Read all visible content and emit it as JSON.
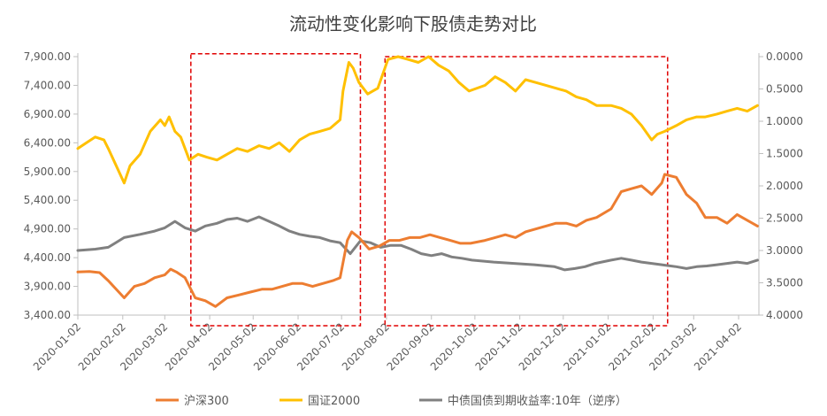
{
  "chart_data": {
    "type": "line",
    "title": "流动性变化影响下股债走势对比",
    "x_ticks": [
      "2020-01-02",
      "2020-02-02",
      "2020-03-02",
      "2020-04-02",
      "2020-05-02",
      "2020-06-02",
      "2020-07-02",
      "2020-08-02",
      "2020-09-02",
      "2020-10-02",
      "2020-11-02",
      "2020-12-02",
      "2021-01-02",
      "2021-02-02",
      "2021-03-02",
      "2021-04-02"
    ],
    "y_left": {
      "ticks": [
        "3,400.00",
        "3,900.00",
        "4,400.00",
        "4,900.00",
        "5,400.00",
        "5,900.00",
        "6,400.00",
        "6,900.00",
        "7,400.00",
        "7,900.00"
      ],
      "range": [
        3400,
        7900
      ]
    },
    "y_right": {
      "ticks": [
        "0.0000",
        "0.5000",
        "1.0000",
        "1.5000",
        "2.0000",
        "2.5000",
        "3.0000",
        "3.5000",
        "4.0000"
      ],
      "range": [
        0,
        4
      ],
      "inverted": true
    },
    "series": [
      {
        "name": "沪深300",
        "axis": "left",
        "color": "#ED7D31",
        "points": [
          [
            "2020-01-02",
            4150
          ],
          [
            "2020-01-10",
            4160
          ],
          [
            "2020-01-17",
            4140
          ],
          [
            "2020-01-23",
            4000
          ],
          [
            "2020-02-03",
            3700
          ],
          [
            "2020-02-10",
            3900
          ],
          [
            "2020-02-17",
            3950
          ],
          [
            "2020-02-24",
            4050
          ],
          [
            "2020-03-02",
            4100
          ],
          [
            "2020-03-06",
            4200
          ],
          [
            "2020-03-10",
            4150
          ],
          [
            "2020-03-16",
            4050
          ],
          [
            "2020-03-23",
            3700
          ],
          [
            "2020-03-30",
            3650
          ],
          [
            "2020-04-06",
            3550
          ],
          [
            "2020-04-14",
            3700
          ],
          [
            "2020-04-22",
            3750
          ],
          [
            "2020-04-30",
            3800
          ],
          [
            "2020-05-08",
            3850
          ],
          [
            "2020-05-15",
            3850
          ],
          [
            "2020-05-22",
            3900
          ],
          [
            "2020-05-29",
            3950
          ],
          [
            "2020-06-05",
            3950
          ],
          [
            "2020-06-12",
            3900
          ],
          [
            "2020-06-19",
            3950
          ],
          [
            "2020-06-26",
            4000
          ],
          [
            "2020-07-01",
            4050
          ],
          [
            "2020-07-06",
            4700
          ],
          [
            "2020-07-09",
            4850
          ],
          [
            "2020-07-14",
            4750
          ],
          [
            "2020-07-21",
            4550
          ],
          [
            "2020-07-28",
            4600
          ],
          [
            "2020-08-04",
            4700
          ],
          [
            "2020-08-11",
            4700
          ],
          [
            "2020-08-18",
            4750
          ],
          [
            "2020-08-25",
            4750
          ],
          [
            "2020-09-01",
            4800
          ],
          [
            "2020-09-08",
            4750
          ],
          [
            "2020-09-15",
            4700
          ],
          [
            "2020-09-22",
            4650
          ],
          [
            "2020-09-29",
            4650
          ],
          [
            "2020-10-09",
            4700
          ],
          [
            "2020-10-16",
            4750
          ],
          [
            "2020-10-23",
            4800
          ],
          [
            "2020-10-30",
            4750
          ],
          [
            "2020-11-06",
            4850
          ],
          [
            "2020-11-13",
            4900
          ],
          [
            "2020-11-20",
            4950
          ],
          [
            "2020-11-27",
            5000
          ],
          [
            "2020-12-04",
            5000
          ],
          [
            "2020-12-11",
            4950
          ],
          [
            "2020-12-18",
            5050
          ],
          [
            "2020-12-25",
            5100
          ],
          [
            "2021-01-04",
            5250
          ],
          [
            "2021-01-11",
            5550
          ],
          [
            "2021-01-18",
            5600
          ],
          [
            "2021-01-25",
            5650
          ],
          [
            "2021-02-01",
            5500
          ],
          [
            "2021-02-08",
            5700
          ],
          [
            "2021-02-10",
            5850
          ],
          [
            "2021-02-18",
            5800
          ],
          [
            "2021-02-25",
            5500
          ],
          [
            "2021-03-04",
            5350
          ],
          [
            "2021-03-10",
            5100
          ],
          [
            "2021-03-18",
            5100
          ],
          [
            "2021-03-25",
            5000
          ],
          [
            "2021-04-01",
            5150
          ],
          [
            "2021-04-08",
            5050
          ],
          [
            "2021-04-15",
            4950
          ]
        ]
      },
      {
        "name": "国证2000",
        "axis": "left",
        "color": "#FFC000",
        "points": [
          [
            "2020-01-02",
            6300
          ],
          [
            "2020-01-08",
            6400
          ],
          [
            "2020-01-14",
            6500
          ],
          [
            "2020-01-20",
            6450
          ],
          [
            "2020-01-23",
            6300
          ],
          [
            "2020-02-03",
            5700
          ],
          [
            "2020-02-07",
            6000
          ],
          [
            "2020-02-14",
            6200
          ],
          [
            "2020-02-21",
            6600
          ],
          [
            "2020-02-28",
            6800
          ],
          [
            "2020-03-02",
            6700
          ],
          [
            "2020-03-05",
            6850
          ],
          [
            "2020-03-09",
            6600
          ],
          [
            "2020-03-13",
            6500
          ],
          [
            "2020-03-19",
            6100
          ],
          [
            "2020-03-25",
            6200
          ],
          [
            "2020-03-31",
            6150
          ],
          [
            "2020-04-07",
            6100
          ],
          [
            "2020-04-14",
            6200
          ],
          [
            "2020-04-21",
            6300
          ],
          [
            "2020-04-28",
            6250
          ],
          [
            "2020-05-06",
            6350
          ],
          [
            "2020-05-13",
            6300
          ],
          [
            "2020-05-20",
            6400
          ],
          [
            "2020-05-27",
            6250
          ],
          [
            "2020-06-03",
            6450
          ],
          [
            "2020-06-10",
            6550
          ],
          [
            "2020-06-17",
            6600
          ],
          [
            "2020-06-24",
            6650
          ],
          [
            "2020-07-01",
            6800
          ],
          [
            "2020-07-03",
            7300
          ],
          [
            "2020-07-07",
            7800
          ],
          [
            "2020-07-10",
            7700
          ],
          [
            "2020-07-14",
            7450
          ],
          [
            "2020-07-20",
            7250
          ],
          [
            "2020-07-27",
            7350
          ],
          [
            "2020-08-03",
            7850
          ],
          [
            "2020-08-10",
            7900
          ],
          [
            "2020-08-17",
            7850
          ],
          [
            "2020-08-24",
            7800
          ],
          [
            "2020-08-31",
            7900
          ],
          [
            "2020-09-07",
            7750
          ],
          [
            "2020-09-14",
            7650
          ],
          [
            "2020-09-21",
            7450
          ],
          [
            "2020-09-28",
            7300
          ],
          [
            "2020-10-09",
            7400
          ],
          [
            "2020-10-16",
            7550
          ],
          [
            "2020-10-23",
            7450
          ],
          [
            "2020-10-30",
            7300
          ],
          [
            "2020-11-06",
            7500
          ],
          [
            "2020-11-13",
            7450
          ],
          [
            "2020-11-20",
            7400
          ],
          [
            "2020-11-27",
            7350
          ],
          [
            "2020-12-04",
            7300
          ],
          [
            "2020-12-11",
            7200
          ],
          [
            "2020-12-18",
            7150
          ],
          [
            "2020-12-25",
            7050
          ],
          [
            "2021-01-04",
            7050
          ],
          [
            "2021-01-11",
            7000
          ],
          [
            "2021-01-18",
            6900
          ],
          [
            "2021-01-25",
            6700
          ],
          [
            "2021-02-01",
            6450
          ],
          [
            "2021-02-05",
            6550
          ],
          [
            "2021-02-10",
            6600
          ],
          [
            "2021-02-18",
            6700
          ],
          [
            "2021-02-25",
            6800
          ],
          [
            "2021-03-04",
            6850
          ],
          [
            "2021-03-10",
            6850
          ],
          [
            "2021-03-18",
            6900
          ],
          [
            "2021-03-25",
            6950
          ],
          [
            "2021-04-01",
            7000
          ],
          [
            "2021-04-08",
            6950
          ],
          [
            "2021-04-15",
            7050
          ]
        ]
      },
      {
        "name": "中债国债到期收益率:10年（逆序）",
        "axis": "right",
        "color": "#808080",
        "points": [
          [
            "2020-01-02",
            3.0
          ],
          [
            "2020-01-14",
            2.98
          ],
          [
            "2020-01-23",
            2.95
          ],
          [
            "2020-02-03",
            2.8
          ],
          [
            "2020-02-14",
            2.75
          ],
          [
            "2020-02-24",
            2.7
          ],
          [
            "2020-03-02",
            2.65
          ],
          [
            "2020-03-09",
            2.55
          ],
          [
            "2020-03-16",
            2.65
          ],
          [
            "2020-03-23",
            2.7
          ],
          [
            "2020-03-30",
            2.62
          ],
          [
            "2020-04-07",
            2.58
          ],
          [
            "2020-04-14",
            2.52
          ],
          [
            "2020-04-21",
            2.5
          ],
          [
            "2020-04-28",
            2.55
          ],
          [
            "2020-05-06",
            2.48
          ],
          [
            "2020-05-13",
            2.55
          ],
          [
            "2020-05-20",
            2.62
          ],
          [
            "2020-05-27",
            2.7
          ],
          [
            "2020-06-03",
            2.75
          ],
          [
            "2020-06-10",
            2.78
          ],
          [
            "2020-06-17",
            2.8
          ],
          [
            "2020-06-24",
            2.85
          ],
          [
            "2020-07-01",
            2.88
          ],
          [
            "2020-07-08",
            3.05
          ],
          [
            "2020-07-15",
            2.85
          ],
          [
            "2020-07-22",
            2.88
          ],
          [
            "2020-07-29",
            2.95
          ],
          [
            "2020-08-05",
            2.92
          ],
          [
            "2020-08-12",
            2.92
          ],
          [
            "2020-08-19",
            2.98
          ],
          [
            "2020-08-26",
            3.05
          ],
          [
            "2020-09-02",
            3.08
          ],
          [
            "2020-09-09",
            3.05
          ],
          [
            "2020-09-16",
            3.1
          ],
          [
            "2020-09-23",
            3.12
          ],
          [
            "2020-09-30",
            3.15
          ],
          [
            "2020-10-15",
            3.18
          ],
          [
            "2020-10-29",
            3.2
          ],
          [
            "2020-11-12",
            3.22
          ],
          [
            "2020-11-26",
            3.25
          ],
          [
            "2020-12-03",
            3.3
          ],
          [
            "2020-12-10",
            3.28
          ],
          [
            "2020-12-17",
            3.25
          ],
          [
            "2020-12-24",
            3.2
          ],
          [
            "2021-01-04",
            3.15
          ],
          [
            "2021-01-11",
            3.12
          ],
          [
            "2021-01-18",
            3.15
          ],
          [
            "2021-01-25",
            3.18
          ],
          [
            "2021-02-01",
            3.2
          ],
          [
            "2021-02-08",
            3.22
          ],
          [
            "2021-02-18",
            3.25
          ],
          [
            "2021-02-25",
            3.28
          ],
          [
            "2021-03-04",
            3.25
          ],
          [
            "2021-03-11",
            3.24
          ],
          [
            "2021-03-18",
            3.22
          ],
          [
            "2021-03-25",
            3.2
          ],
          [
            "2021-04-01",
            3.18
          ],
          [
            "2021-04-08",
            3.2
          ],
          [
            "2021-04-15",
            3.15
          ]
        ]
      }
    ],
    "highlight_boxes": [
      {
        "x_start": "2020-03-20",
        "x_end": "2020-07-15",
        "y_top": 7950,
        "y_bottom": 3400,
        "color": "#E00000"
      },
      {
        "x_start": "2020-08-01",
        "x_end": "2021-02-12",
        "y_top": 7900,
        "y_bottom": 3400,
        "color": "#E00000"
      }
    ],
    "legend_position": "bottom",
    "grid": false
  }
}
